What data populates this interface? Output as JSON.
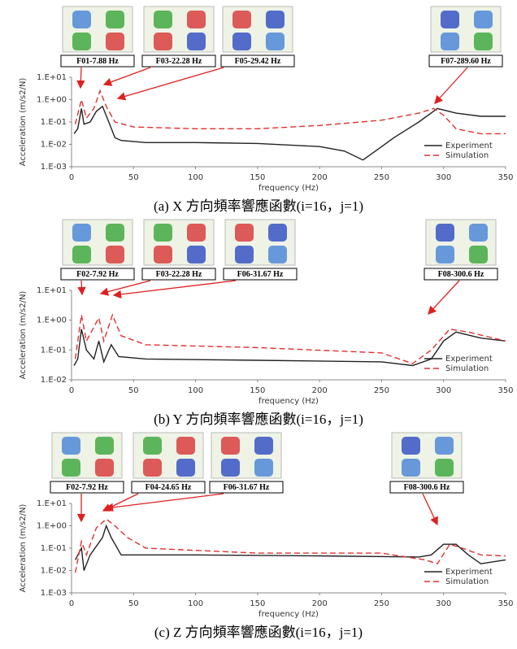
{
  "chart_data": [
    {
      "type": "line",
      "caption": "(a) X 方向頻率響應函數(i=16，j=1)",
      "x_label": "frequency (Hz)",
      "y_label": "Acceleration (m/s2/N)",
      "annotations": [
        "F01-7.88 Hz",
        "F03-22.28 Hz",
        "F05-29.42 Hz",
        "F07-289.60 Hz"
      ],
      "xlim": [
        0,
        350
      ],
      "xticks": [
        0,
        50,
        100,
        150,
        200,
        250,
        300,
        350
      ],
      "log_y": true,
      "ylim": [
        0.001,
        10
      ],
      "yticks": [
        {
          "value": 0.001,
          "label": "1.E-03"
        },
        {
          "value": 0.01,
          "label": "1.E-02"
        },
        {
          "value": 0.1,
          "label": "1.E-01"
        },
        {
          "value": 1,
          "label": "1.E+00"
        },
        {
          "value": 10,
          "label": "1.E+01"
        }
      ],
      "legend": "lower right",
      "series": [
        {
          "name": "Experiment",
          "color": "#222222",
          "linestyle": "solid",
          "x": [
            2,
            5,
            8,
            10,
            15,
            20,
            25,
            30,
            35,
            40,
            60,
            100,
            150,
            200,
            220,
            235,
            245,
            260,
            280,
            295,
            310,
            330,
            350
          ],
          "values": [
            0.03,
            0.05,
            0.4,
            0.08,
            0.1,
            0.3,
            0.5,
            0.1,
            0.02,
            0.015,
            0.012,
            0.012,
            0.011,
            0.008,
            0.005,
            0.002,
            0.005,
            0.02,
            0.1,
            0.4,
            0.25,
            0.18,
            0.18
          ]
        },
        {
          "name": "Simulation",
          "color": "#e03030",
          "linestyle": "dashed",
          "x": [
            3,
            8,
            12,
            18,
            23,
            28,
            35,
            50,
            100,
            150,
            200,
            250,
            280,
            292,
            300,
            310,
            330,
            350
          ],
          "values": [
            0.08,
            1.0,
            0.15,
            0.4,
            2.5,
            0.5,
            0.1,
            0.06,
            0.05,
            0.05,
            0.07,
            0.12,
            0.25,
            0.4,
            0.2,
            0.05,
            0.03,
            0.03
          ]
        }
      ]
    },
    {
      "type": "line",
      "caption": "(b) Y 方向頻率響應函數(i=16，j=1)",
      "x_label": "frequency (Hz)",
      "y_label": "Acceleration (m/s2/N)",
      "annotations": [
        "F02-7.92 Hz",
        "F03-22.28 Hz",
        "F06-31.67 Hz",
        "F08-300.6 Hz"
      ],
      "xlim": [
        0,
        350
      ],
      "xticks": [
        0,
        50,
        100,
        150,
        200,
        250,
        300,
        350
      ],
      "log_y": true,
      "ylim": [
        0.01,
        10
      ],
      "yticks": [
        {
          "value": 0.01,
          "label": "1.E-02"
        },
        {
          "value": 0.1,
          "label": "1.E-01"
        },
        {
          "value": 1,
          "label": "1.E+00"
        },
        {
          "value": 10,
          "label": "1.E+01"
        }
      ],
      "legend": "lower right",
      "series": [
        {
          "name": "Experiment",
          "color": "#222222",
          "linestyle": "solid",
          "x": [
            2,
            5,
            8,
            12,
            18,
            22,
            26,
            32,
            38,
            60,
            150,
            250,
            275,
            290,
            300,
            310,
            330,
            350
          ],
          "values": [
            0.03,
            0.05,
            0.5,
            0.1,
            0.05,
            0.2,
            0.04,
            0.15,
            0.06,
            0.05,
            0.045,
            0.04,
            0.03,
            0.05,
            0.2,
            0.4,
            0.25,
            0.2
          ]
        },
        {
          "name": "Simulation",
          "color": "#e03030",
          "linestyle": "dashed",
          "x": [
            3,
            8,
            12,
            22,
            26,
            33,
            40,
            60,
            150,
            250,
            275,
            290,
            305,
            320,
            350
          ],
          "values": [
            0.05,
            1.5,
            0.2,
            1.2,
            0.2,
            1.5,
            0.3,
            0.15,
            0.12,
            0.08,
            0.035,
            0.1,
            0.5,
            0.4,
            0.2
          ]
        }
      ]
    },
    {
      "type": "line",
      "caption": "(c) Z 方向頻率響應函數(i=16，j=1)",
      "x_label": "frequency (Hz)",
      "y_label": "Acceleration (m/s2/N)",
      "annotations": [
        "F02-7.92 Hz",
        "F04-24.65 Hz",
        "F06-31.67 Hz",
        "F08-300.6 Hz"
      ],
      "xlim": [
        0,
        350
      ],
      "xticks": [
        0,
        50,
        100,
        150,
        200,
        250,
        300,
        350
      ],
      "log_y": true,
      "ylim": [
        0.001,
        10
      ],
      "yticks": [
        {
          "value": 0.001,
          "label": "1.E-03"
        },
        {
          "value": 0.01,
          "label": "1.E-02"
        },
        {
          "value": 0.1,
          "label": "1.E-01"
        },
        {
          "value": 1,
          "label": "1.E+00"
        },
        {
          "value": 10,
          "label": "1.E+01"
        }
      ],
      "legend": "lower right",
      "series": [
        {
          "name": "Experiment",
          "color": "#222222",
          "linestyle": "solid",
          "x": [
            3,
            8,
            10,
            15,
            25,
            28,
            32,
            40,
            100,
            200,
            280,
            290,
            300,
            310,
            320,
            330,
            350
          ],
          "values": [
            0.03,
            0.1,
            0.01,
            0.05,
            0.3,
            1.0,
            0.3,
            0.05,
            0.05,
            0.045,
            0.04,
            0.05,
            0.15,
            0.15,
            0.05,
            0.02,
            0.03
          ]
        },
        {
          "name": "Simulation",
          "color": "#e03030",
          "linestyle": "dashed",
          "x": [
            3,
            8,
            12,
            20,
            28,
            35,
            45,
            60,
            150,
            250,
            285,
            295,
            305,
            315,
            330,
            350
          ],
          "values": [
            0.008,
            0.2,
            0.05,
            0.8,
            2.0,
            1.0,
            0.3,
            0.1,
            0.06,
            0.06,
            0.03,
            0.02,
            0.15,
            0.1,
            0.05,
            0.045
          ]
        }
      ]
    }
  ]
}
